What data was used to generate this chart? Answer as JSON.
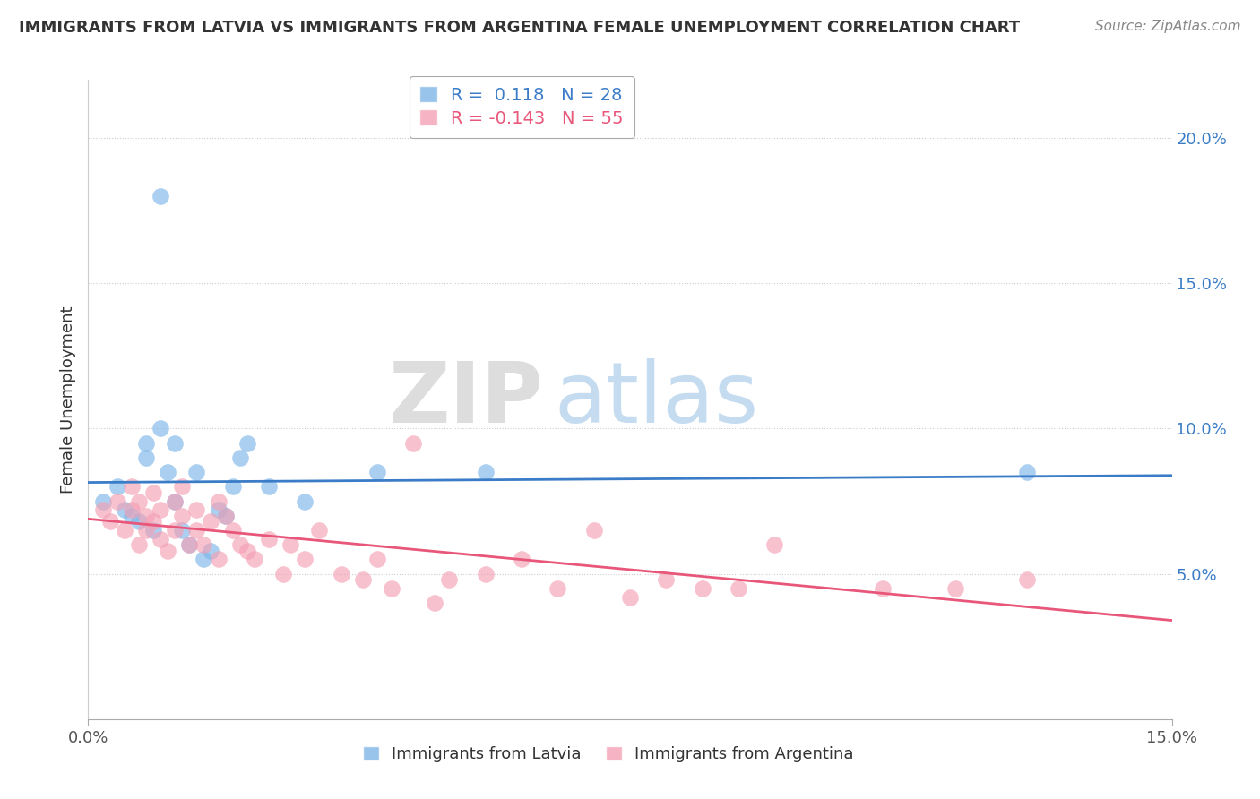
{
  "title": "IMMIGRANTS FROM LATVIA VS IMMIGRANTS FROM ARGENTINA FEMALE UNEMPLOYMENT CORRELATION CHART",
  "source": "Source: ZipAtlas.com",
  "ylabel": "Female Unemployment",
  "right_yticks": [
    "5.0%",
    "10.0%",
    "15.0%",
    "20.0%"
  ],
  "right_ytick_vals": [
    0.05,
    0.1,
    0.15,
    0.2
  ],
  "xlim": [
    0.0,
    0.15
  ],
  "ylim": [
    0.0,
    0.22
  ],
  "legend1_r": "0.118",
  "legend1_n": "28",
  "legend2_r": "-0.143",
  "legend2_n": "55",
  "color_latvia": "#7EB6E8",
  "color_argentina": "#F4A0B5",
  "line_color_latvia": "#3A7CC7",
  "line_color_argentina": "#E8567A",
  "watermark_zip": "ZIP",
  "watermark_atlas": "atlas",
  "latvia_x": [
    0.002,
    0.004,
    0.005,
    0.006,
    0.007,
    0.008,
    0.008,
    0.009,
    0.01,
    0.011,
    0.012,
    0.012,
    0.013,
    0.014,
    0.015,
    0.016,
    0.017,
    0.018,
    0.019,
    0.02,
    0.021,
    0.022,
    0.025,
    0.03,
    0.04,
    0.055,
    0.13,
    0.01
  ],
  "latvia_y": [
    0.075,
    0.08,
    0.072,
    0.07,
    0.068,
    0.09,
    0.095,
    0.065,
    0.1,
    0.085,
    0.075,
    0.095,
    0.065,
    0.06,
    0.085,
    0.055,
    0.058,
    0.072,
    0.07,
    0.08,
    0.09,
    0.095,
    0.08,
    0.075,
    0.085,
    0.085,
    0.085,
    0.18
  ],
  "argentina_x": [
    0.002,
    0.003,
    0.004,
    0.005,
    0.006,
    0.006,
    0.007,
    0.007,
    0.008,
    0.008,
    0.009,
    0.009,
    0.01,
    0.01,
    0.011,
    0.012,
    0.012,
    0.013,
    0.013,
    0.014,
    0.015,
    0.015,
    0.016,
    0.017,
    0.018,
    0.018,
    0.019,
    0.02,
    0.021,
    0.022,
    0.023,
    0.025,
    0.027,
    0.028,
    0.03,
    0.032,
    0.035,
    0.038,
    0.04,
    0.042,
    0.045,
    0.048,
    0.05,
    0.055,
    0.06,
    0.065,
    0.07,
    0.075,
    0.08,
    0.085,
    0.09,
    0.095,
    0.11,
    0.12,
    0.13
  ],
  "argentina_y": [
    0.072,
    0.068,
    0.075,
    0.065,
    0.08,
    0.072,
    0.06,
    0.075,
    0.065,
    0.07,
    0.068,
    0.078,
    0.062,
    0.072,
    0.058,
    0.075,
    0.065,
    0.08,
    0.07,
    0.06,
    0.065,
    0.072,
    0.06,
    0.068,
    0.055,
    0.075,
    0.07,
    0.065,
    0.06,
    0.058,
    0.055,
    0.062,
    0.05,
    0.06,
    0.055,
    0.065,
    0.05,
    0.048,
    0.055,
    0.045,
    0.095,
    0.04,
    0.048,
    0.05,
    0.055,
    0.045,
    0.065,
    0.042,
    0.048,
    0.045,
    0.045,
    0.06,
    0.045,
    0.045,
    0.048
  ]
}
